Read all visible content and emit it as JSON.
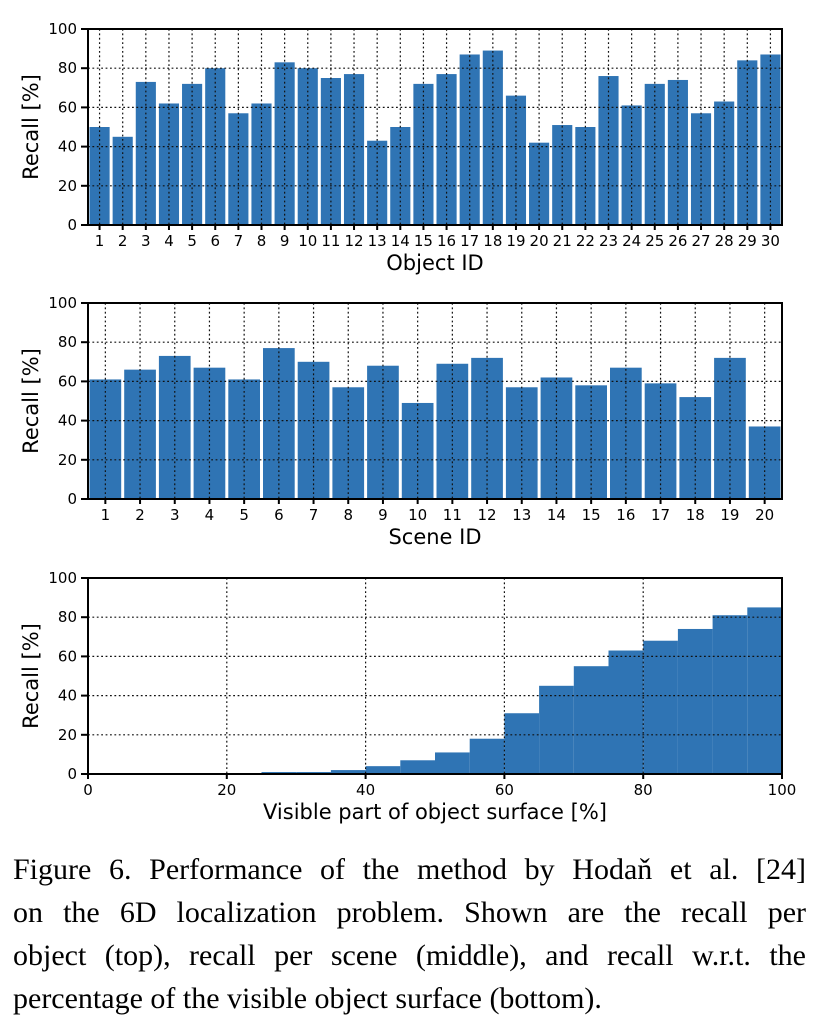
{
  "colors": {
    "background": "#ffffff",
    "bar_fill": "#2f74b4",
    "axis": "#000000",
    "grid": "#111111",
    "text": "#000000"
  },
  "chart_data": [
    {
      "id": "recall-per-object",
      "type": "bar",
      "title": "",
      "xlabel": "Object ID",
      "ylabel": "Recall [%]",
      "ylim": [
        0,
        100
      ],
      "yticks": [
        0,
        20,
        40,
        60,
        80,
        100
      ],
      "grid": "dotted horizontal at yticks, dotted vertical at each category center",
      "legend": "none",
      "categories": [
        "1",
        "2",
        "3",
        "4",
        "5",
        "6",
        "7",
        "8",
        "9",
        "10",
        "11",
        "12",
        "13",
        "14",
        "15",
        "16",
        "17",
        "18",
        "19",
        "20",
        "21",
        "22",
        "23",
        "24",
        "25",
        "26",
        "27",
        "28",
        "29",
        "30"
      ],
      "values": [
        50,
        45,
        73,
        62,
        72,
        80,
        57,
        62,
        83,
        80,
        75,
        77,
        43,
        50,
        72,
        77,
        87,
        89,
        66,
        42,
        51,
        50,
        76,
        61,
        72,
        74,
        57,
        63,
        84,
        87
      ]
    },
    {
      "id": "recall-per-scene",
      "type": "bar",
      "title": "",
      "xlabel": "Scene ID",
      "ylabel": "Recall [%]",
      "ylim": [
        0,
        100
      ],
      "yticks": [
        0,
        20,
        40,
        60,
        80,
        100
      ],
      "grid": "dotted horizontal at yticks, dotted vertical at each category center",
      "legend": "none",
      "categories": [
        "1",
        "2",
        "3",
        "4",
        "5",
        "6",
        "7",
        "8",
        "9",
        "10",
        "11",
        "12",
        "13",
        "14",
        "15",
        "16",
        "17",
        "18",
        "19",
        "20"
      ],
      "values": [
        61,
        66,
        73,
        67,
        61,
        77,
        70,
        57,
        68,
        49,
        69,
        72,
        57,
        62,
        58,
        67,
        59,
        52,
        72,
        37
      ]
    },
    {
      "id": "recall-vs-visible-surface",
      "type": "histogram",
      "title": "",
      "xlabel": "Visible part of object surface [%]",
      "ylabel": "Recall [%]",
      "xlim": [
        0,
        100
      ],
      "ylim": [
        0,
        100
      ],
      "xticks": [
        0,
        20,
        40,
        60,
        80,
        100
      ],
      "yticks": [
        0,
        20,
        40,
        60,
        80,
        100
      ],
      "grid": "dotted horizontal at yticks, dotted vertical at inner xticks",
      "legend": "none",
      "bin_start": 25,
      "bin_width": 5,
      "bin_edges": [
        25,
        30,
        35,
        40,
        45,
        50,
        55,
        60,
        65,
        70,
        75,
        80,
        85,
        90,
        95,
        100
      ],
      "values": [
        1,
        1,
        2,
        4,
        7,
        11,
        18,
        31,
        45,
        55,
        63,
        68,
        74,
        81,
        85
      ]
    }
  ],
  "caption": {
    "label": "Figure 6.",
    "lines": [
      "Figure 6.  Performance of the method by Hodaň et al. [24]",
      "on the 6D localization problem.  Shown are the recall per",
      "object (top), recall per scene (middle), and recall w.r.t. the",
      "percentage of the visible object surface (bottom)."
    ]
  }
}
